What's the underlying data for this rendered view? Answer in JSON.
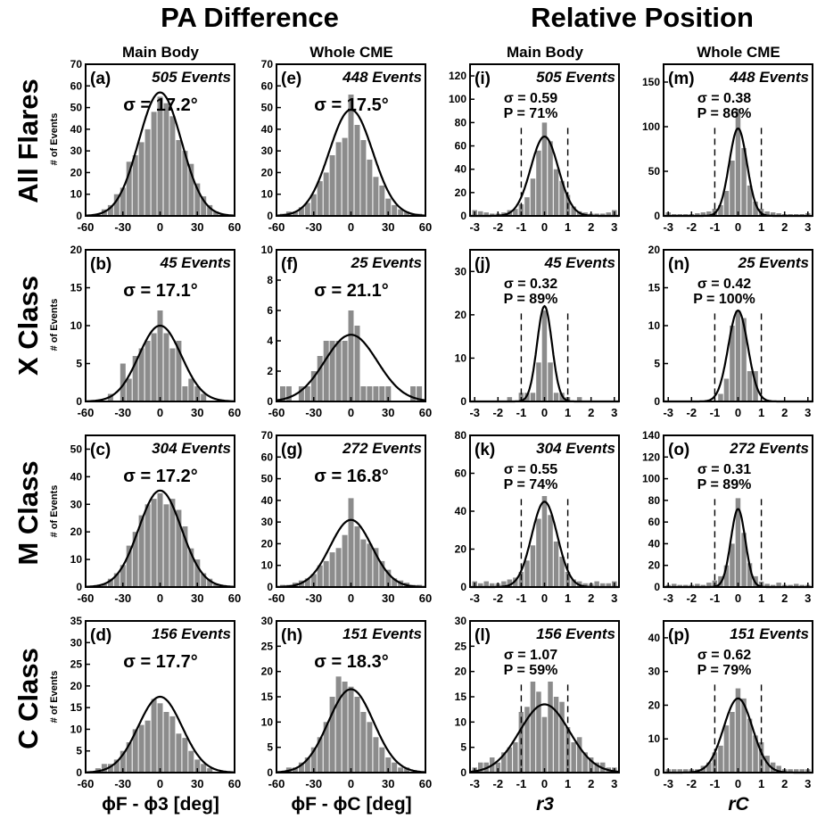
{
  "headers": {
    "pa": "PA Difference",
    "rel": "Relative Position",
    "cols": [
      "Main Body",
      "Whole CME",
      "Main Body",
      "Whole CME"
    ],
    "rows": [
      "All Flares",
      "X Class",
      "M Class",
      "C Class"
    ],
    "ylabel": "# of Events",
    "xlabels": [
      "ϕF - ϕ3 [deg]",
      "ϕF - ϕC [deg]",
      "r3",
      "rC"
    ]
  },
  "colors": {
    "bar": "#8c8c8c",
    "curve": "#000000"
  },
  "chart_data": [
    {
      "id": "a",
      "type": "bar",
      "label": "(a)",
      "events": "505 Events",
      "sigma_text": "σ = 17.2°",
      "x_ticks": [
        "-60",
        "-30",
        "0",
        "30",
        "60"
      ],
      "xlim": [
        -60,
        60
      ],
      "ylim": [
        0,
        70
      ],
      "y_ticks": [
        "0",
        "10",
        "20",
        "30",
        "40",
        "50",
        "60",
        "70"
      ],
      "bins": [
        -50,
        -45,
        -40,
        -35,
        -30,
        -25,
        -20,
        -15,
        -10,
        -5,
        0,
        5,
        10,
        15,
        20,
        25,
        30,
        35,
        40,
        45,
        50
      ],
      "values": [
        1,
        3,
        5,
        10,
        13,
        25,
        28,
        34,
        40,
        48,
        55,
        52,
        46,
        35,
        30,
        24,
        15,
        9,
        5,
        2,
        1
      ],
      "fit": {
        "amp": 57,
        "mu": 0,
        "sigma": 17.2
      }
    },
    {
      "id": "b",
      "type": "bar",
      "label": "(b)",
      "events": "45 Events",
      "sigma_text": "σ = 17.1°",
      "x_ticks": [
        "-60",
        "-30",
        "0",
        "30",
        "60"
      ],
      "xlim": [
        -60,
        60
      ],
      "ylim": [
        0,
        20
      ],
      "y_ticks": [
        "0",
        "5",
        "10",
        "15",
        "20"
      ],
      "bins": [
        -40,
        -35,
        -30,
        -25,
        -20,
        -15,
        -10,
        -5,
        0,
        5,
        10,
        15,
        20,
        25,
        30,
        35
      ],
      "values": [
        1,
        0,
        5,
        3,
        6,
        7,
        8,
        9,
        12,
        9,
        7,
        8,
        2,
        3,
        2,
        1
      ],
      "fit": {
        "amp": 10,
        "mu": 0,
        "sigma": 17.1
      }
    },
    {
      "id": "c",
      "type": "bar",
      "label": "(c)",
      "events": "304 Events",
      "sigma_text": "σ = 17.2°",
      "x_ticks": [
        "-60",
        "-30",
        "0",
        "30",
        "60"
      ],
      "xlim": [
        -60,
        60
      ],
      "ylim": [
        0,
        55
      ],
      "y_ticks": [
        "0",
        "10",
        "20",
        "30",
        "40",
        "50"
      ],
      "bins": [
        -45,
        -40,
        -35,
        -30,
        -25,
        -20,
        -15,
        -10,
        -5,
        0,
        5,
        10,
        15,
        20,
        25,
        30,
        35,
        40,
        45
      ],
      "values": [
        1,
        3,
        5,
        8,
        15,
        20,
        26,
        30,
        32,
        34,
        30,
        32,
        28,
        22,
        14,
        10,
        5,
        3,
        1
      ],
      "fit": {
        "amp": 35,
        "mu": 0,
        "sigma": 17.2
      }
    },
    {
      "id": "d",
      "type": "bar",
      "label": "(d)",
      "events": "156 Events",
      "sigma_text": "σ = 17.7°",
      "x_ticks": [
        "-60",
        "-30",
        "0",
        "30",
        "60"
      ],
      "xlim": [
        -60,
        60
      ],
      "ylim": [
        0,
        35
      ],
      "y_ticks": [
        "0",
        "5",
        "10",
        "15",
        "20",
        "25",
        "30",
        "35"
      ],
      "bins": [
        -50,
        -45,
        -40,
        -35,
        -30,
        -25,
        -20,
        -15,
        -10,
        -5,
        0,
        5,
        10,
        15,
        20,
        25,
        30,
        35,
        40
      ],
      "values": [
        1,
        2,
        2,
        3,
        5,
        7,
        10,
        11,
        12,
        17,
        16,
        14,
        13,
        9,
        8,
        5,
        3,
        2,
        1
      ],
      "fit": {
        "amp": 17.5,
        "mu": 0,
        "sigma": 17.7
      }
    },
    {
      "id": "e",
      "type": "bar",
      "label": "(e)",
      "events": "448 Events",
      "sigma_text": "σ = 17.5°",
      "x_ticks": [
        "-60",
        "-30",
        "0",
        "30",
        "60"
      ],
      "xlim": [
        -60,
        60
      ],
      "ylim": [
        0,
        70
      ],
      "y_ticks": [
        "0",
        "10",
        "20",
        "30",
        "40",
        "50",
        "60",
        "70"
      ],
      "bins": [
        -55,
        -50,
        -45,
        -40,
        -35,
        -30,
        -25,
        -20,
        -15,
        -10,
        -5,
        0,
        5,
        10,
        15,
        20,
        25,
        30,
        35,
        40,
        45,
        50,
        55
      ],
      "values": [
        1,
        2,
        2,
        4,
        6,
        10,
        16,
        20,
        28,
        34,
        36,
        56,
        42,
        35,
        26,
        18,
        14,
        8,
        5,
        3,
        2,
        1,
        1
      ],
      "fit": {
        "amp": 49,
        "mu": 0,
        "sigma": 17.5
      }
    },
    {
      "id": "f",
      "type": "bar",
      "label": "(f)",
      "events": "25 Events",
      "sigma_text": "σ = 21.1°",
      "x_ticks": [
        "-60",
        "-30",
        "0",
        "30",
        "60"
      ],
      "xlim": [
        -60,
        60
      ],
      "ylim": [
        0,
        10
      ],
      "y_ticks": [
        "0",
        "2",
        "4",
        "6",
        "8",
        "10"
      ],
      "bins": [
        -55,
        -50,
        -45,
        -40,
        -35,
        -30,
        -25,
        -20,
        -15,
        -10,
        -5,
        0,
        5,
        10,
        15,
        20,
        25,
        30,
        35,
        40,
        45,
        50,
        55
      ],
      "values": [
        1,
        1,
        0,
        1,
        1,
        2,
        3,
        4,
        4,
        4,
        4,
        6,
        5,
        1,
        1,
        1,
        1,
        1,
        0,
        0,
        0,
        1,
        1
      ],
      "fit": {
        "amp": 4.4,
        "mu": 0,
        "sigma": 21.1
      }
    },
    {
      "id": "g",
      "type": "bar",
      "label": "(g)",
      "events": "272 Events",
      "sigma_text": "σ = 16.8°",
      "x_ticks": [
        "-60",
        "-30",
        "0",
        "30",
        "60"
      ],
      "xlim": [
        -60,
        60
      ],
      "ylim": [
        0,
        70
      ],
      "y_ticks": [
        "0",
        "10",
        "20",
        "30",
        "40",
        "50",
        "60",
        "70"
      ],
      "bins": [
        -55,
        -50,
        -45,
        -40,
        -35,
        -30,
        -25,
        -20,
        -15,
        -10,
        -5,
        0,
        5,
        10,
        15,
        20,
        25,
        30,
        35,
        40,
        45,
        50,
        55
      ],
      "values": [
        1,
        1,
        2,
        3,
        4,
        6,
        10,
        12,
        16,
        18,
        24,
        41,
        28,
        22,
        20,
        18,
        12,
        8,
        4,
        3,
        2,
        1,
        1
      ],
      "fit": {
        "amp": 31,
        "mu": 0,
        "sigma": 16.8
      }
    },
    {
      "id": "h",
      "type": "bar",
      "label": "(h)",
      "events": "151 Events",
      "sigma_text": "σ = 18.3°",
      "x_ticks": [
        "-60",
        "-30",
        "0",
        "30",
        "60"
      ],
      "xlim": [
        -60,
        60
      ],
      "ylim": [
        0,
        30
      ],
      "y_ticks": [
        "0",
        "5",
        "10",
        "15",
        "20",
        "25",
        "30"
      ],
      "bins": [
        -50,
        -45,
        -40,
        -35,
        -30,
        -25,
        -20,
        -15,
        -10,
        -5,
        0,
        5,
        10,
        15,
        20,
        25,
        30,
        35,
        40,
        45
      ],
      "values": [
        1,
        1,
        2,
        3,
        5,
        7,
        10,
        15,
        19,
        18,
        17,
        15,
        12,
        10,
        7,
        5,
        3,
        2,
        1,
        1
      ],
      "fit": {
        "amp": 16.5,
        "mu": 0,
        "sigma": 18.3
      }
    },
    {
      "id": "i",
      "type": "bar",
      "label": "(i)",
      "events": "505 Events",
      "sigma_text": "σ = 0.59",
      "p_text": "P = 71%",
      "x_ticks": [
        "-3",
        "-2",
        "-1",
        "0",
        "1",
        "2",
        "3"
      ],
      "xlim": [
        -3.2,
        3.2
      ],
      "ylim": [
        0,
        130
      ],
      "y_ticks": [
        "0",
        "20",
        "40",
        "60",
        "80",
        "100",
        "120"
      ],
      "bins": [
        -3,
        -2.75,
        -2.5,
        -2.25,
        -2,
        -1.75,
        -1.5,
        -1.25,
        -1,
        -0.75,
        -0.5,
        -0.25,
        0,
        0.25,
        0.5,
        0.75,
        1,
        1.25,
        1.5,
        1.75,
        2,
        2.25,
        2.5,
        2.75,
        3
      ],
      "values": [
        5,
        4,
        3,
        2,
        2,
        3,
        5,
        6,
        10,
        16,
        32,
        56,
        80,
        64,
        40,
        30,
        18,
        8,
        4,
        3,
        2,
        2,
        2,
        3,
        5
      ],
      "fit": {
        "amp": 68,
        "mu": 0,
        "sigma": 0.59
      },
      "dashed": [
        -1,
        1
      ]
    },
    {
      "id": "j",
      "type": "bar",
      "label": "(j)",
      "events": "45 Events",
      "sigma_text": "σ = 0.32",
      "p_text": "P = 89%",
      "x_ticks": [
        "-3",
        "-2",
        "-1",
        "0",
        "1",
        "2",
        "3"
      ],
      "xlim": [
        -3.2,
        3.2
      ],
      "ylim": [
        0,
        35
      ],
      "y_ticks": [
        "0",
        "10",
        "20",
        "30"
      ],
      "bins": [
        -1.5,
        -1.25,
        -1,
        -0.75,
        -0.5,
        -0.25,
        0,
        0.25,
        0.5,
        0.75,
        1,
        1.25,
        1.5
      ],
      "values": [
        1,
        0,
        2,
        2,
        2,
        9,
        21,
        9,
        2,
        2,
        1,
        0,
        1
      ],
      "fit": {
        "amp": 22,
        "mu": 0,
        "sigma": 0.32
      },
      "dashed": [
        -1,
        1
      ]
    },
    {
      "id": "k",
      "type": "bar",
      "label": "(k)",
      "events": "304 Events",
      "sigma_text": "σ = 0.55",
      "p_text": "P = 74%",
      "x_ticks": [
        "-3",
        "-2",
        "-1",
        "0",
        "1",
        "2",
        "3"
      ],
      "xlim": [
        -3.2,
        3.2
      ],
      "ylim": [
        0,
        80
      ],
      "y_ticks": [
        "0",
        "20",
        "40",
        "60",
        "80"
      ],
      "bins": [
        -3,
        -2.75,
        -2.5,
        -2.25,
        -2,
        -1.75,
        -1.5,
        -1.25,
        -1,
        -0.75,
        -0.5,
        -0.25,
        0,
        0.25,
        0.5,
        0.75,
        1,
        1.25,
        1.5,
        1.75,
        2,
        2.25,
        2.5,
        2.75,
        3
      ],
      "values": [
        3,
        2,
        3,
        2,
        2,
        3,
        4,
        5,
        8,
        14,
        22,
        36,
        48,
        38,
        24,
        16,
        8,
        4,
        3,
        2,
        2,
        3,
        2,
        2,
        3
      ],
      "fit": {
        "amp": 45,
        "mu": 0,
        "sigma": 0.55
      },
      "dashed": [
        -1,
        1
      ]
    },
    {
      "id": "l",
      "type": "bar",
      "label": "(l)",
      "events": "156 Events",
      "sigma_text": "σ = 1.07",
      "p_text": "P = 59%",
      "x_ticks": [
        "-3",
        "-2",
        "-1",
        "0",
        "1",
        "2",
        "3"
      ],
      "xlim": [
        -3.2,
        3.2
      ],
      "ylim": [
        0,
        30
      ],
      "y_ticks": [
        "0",
        "5",
        "10",
        "15",
        "20",
        "25",
        "30"
      ],
      "bins": [
        -3,
        -2.75,
        -2.5,
        -2.25,
        -2,
        -1.75,
        -1.5,
        -1.25,
        -1,
        -0.75,
        -0.5,
        -0.25,
        0,
        0.25,
        0.5,
        0.75,
        1,
        1.25,
        1.5,
        1.75,
        2,
        2.25,
        2.5,
        2.75,
        3
      ],
      "values": [
        1,
        2,
        2,
        3,
        2,
        4,
        5,
        6,
        12,
        13,
        18,
        16,
        11,
        18,
        15,
        14,
        9,
        6,
        7,
        4,
        3,
        2,
        2,
        1,
        1
      ],
      "fit": {
        "amp": 13.5,
        "mu": 0,
        "sigma": 1.07
      },
      "dashed": [
        -1,
        1
      ]
    },
    {
      "id": "m",
      "type": "bar",
      "label": "(m)",
      "events": "448 Events",
      "sigma_text": "σ = 0.38",
      "p_text": "P = 86%",
      "x_ticks": [
        "-3",
        "-2",
        "-1",
        "0",
        "1",
        "2",
        "3"
      ],
      "xlim": [
        -3.2,
        3.2
      ],
      "ylim": [
        0,
        170
      ],
      "y_ticks": [
        "0",
        "50",
        "100",
        "150"
      ],
      "bins": [
        -3,
        -2.75,
        -2.5,
        -2.25,
        -2,
        -1.75,
        -1.5,
        -1.25,
        -1,
        -0.75,
        -0.5,
        -0.25,
        0,
        0.25,
        0.5,
        0.75,
        1,
        1.25,
        1.5,
        1.75,
        2,
        2.25,
        2.5,
        2.75,
        3
      ],
      "values": [
        4,
        2,
        2,
        2,
        2,
        3,
        4,
        5,
        8,
        12,
        28,
        62,
        120,
        76,
        34,
        16,
        8,
        5,
        4,
        3,
        2,
        2,
        2,
        2,
        3
      ],
      "fit": {
        "amp": 98,
        "mu": 0,
        "sigma": 0.38
      },
      "dashed": [
        -1,
        1
      ]
    },
    {
      "id": "n",
      "type": "bar",
      "label": "(n)",
      "events": "25 Events",
      "sigma_text": "σ = 0.42",
      "p_text": "P = 100%",
      "x_ticks": [
        "-3",
        "-2",
        "-1",
        "0",
        "1",
        "2",
        "3"
      ],
      "xlim": [
        -3.2,
        3.2
      ],
      "ylim": [
        0,
        20
      ],
      "y_ticks": [
        "0",
        "5",
        "10",
        "15",
        "20"
      ],
      "bins": [
        -0.75,
        -0.5,
        -0.25,
        0,
        0.25,
        0.5,
        0.75
      ],
      "values": [
        1,
        3,
        10,
        12,
        11,
        4,
        4
      ],
      "fit": {
        "amp": 12,
        "mu": 0,
        "sigma": 0.42
      },
      "dashed": [
        -1,
        1
      ]
    },
    {
      "id": "o",
      "type": "bar",
      "label": "(o)",
      "events": "272 Events",
      "sigma_text": "σ = 0.31",
      "p_text": "P = 89%",
      "x_ticks": [
        "-3",
        "-2",
        "-1",
        "0",
        "1",
        "2",
        "3"
      ],
      "xlim": [
        -3.2,
        3.2
      ],
      "ylim": [
        0,
        140
      ],
      "y_ticks": [
        "0",
        "20",
        "40",
        "60",
        "80",
        "100",
        "120",
        "140"
      ],
      "bins": [
        -3,
        -2.75,
        -2.5,
        -2.25,
        -2,
        -1.75,
        -1.5,
        -1.25,
        -1,
        -0.75,
        -0.5,
        -0.25,
        0,
        0.25,
        0.5,
        0.75,
        1,
        1.25,
        1.5,
        1.75,
        2,
        2.25,
        2.5,
        2.75,
        3
      ],
      "values": [
        2,
        3,
        2,
        2,
        2,
        3,
        2,
        4,
        6,
        10,
        20,
        40,
        82,
        50,
        22,
        10,
        5,
        3,
        2,
        4,
        2,
        2,
        3,
        2,
        2
      ],
      "fit": {
        "amp": 72,
        "mu": 0,
        "sigma": 0.31
      },
      "dashed": [
        -1,
        1
      ]
    },
    {
      "id": "p",
      "type": "bar",
      "label": "(p)",
      "events": "151 Events",
      "sigma_text": "σ = 0.62",
      "p_text": "P = 79%",
      "x_ticks": [
        "-3",
        "-2",
        "-1",
        "0",
        "1",
        "2",
        "3"
      ],
      "xlim": [
        -3.2,
        3.2
      ],
      "ylim": [
        0,
        45
      ],
      "y_ticks": [
        "0",
        "10",
        "20",
        "30",
        "40"
      ],
      "bins": [
        -3,
        -2.75,
        -2.5,
        -2.25,
        -2,
        -1.75,
        -1.5,
        -1.25,
        -1,
        -0.75,
        -0.5,
        -0.25,
        0,
        0.25,
        0.5,
        0.75,
        1,
        1.25,
        1.5,
        1.75,
        2,
        2.25,
        2.5,
        2.75,
        3
      ],
      "values": [
        1,
        1,
        1,
        1,
        1,
        1,
        2,
        3,
        6,
        8,
        14,
        18,
        25,
        22,
        16,
        11,
        9,
        5,
        3,
        2,
        1,
        1,
        1,
        1,
        1
      ],
      "fit": {
        "amp": 22,
        "mu": 0,
        "sigma": 0.62
      },
      "dashed": [
        -1,
        1
      ]
    }
  ]
}
